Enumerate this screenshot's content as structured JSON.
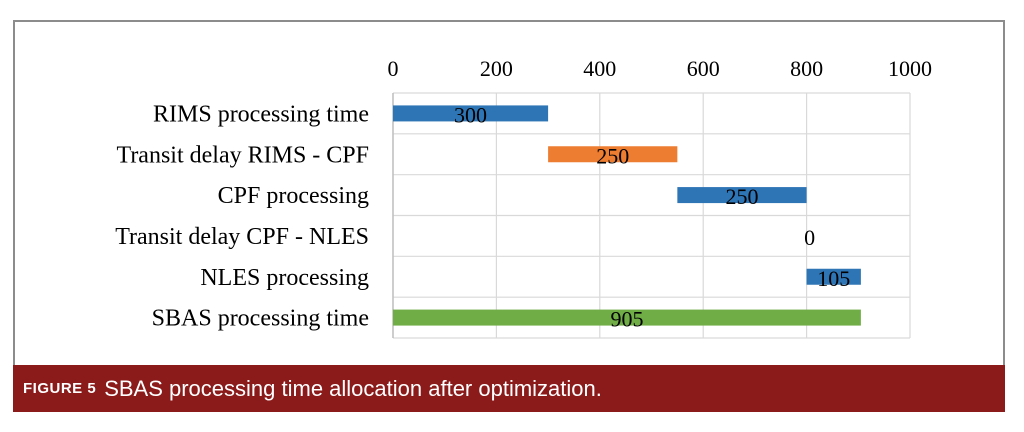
{
  "chart_data": {
    "type": "bar",
    "orientation": "horizontal",
    "categories": [
      "RIMS processing time",
      "Transit delay RIMS - CPF",
      "CPF processing",
      "Transit delay CPF - NLES",
      "NLES processing",
      "SBAS processing time"
    ],
    "starts": [
      0,
      300,
      550,
      800,
      800,
      0
    ],
    "values": [
      300,
      250,
      250,
      0,
      105,
      905
    ],
    "bar_colors": [
      "#2e75b6",
      "#ed7d31",
      "#2e75b6",
      "#2e75b6",
      "#2e75b6",
      "#70ad47"
    ],
    "xlim": [
      0,
      1000
    ],
    "xticks": [
      0,
      200,
      400,
      600,
      800,
      1000
    ],
    "x_axis_position": "top",
    "grid": true
  },
  "caption": {
    "label": "FIGURE 5",
    "text": "SBAS processing time allocation after optimization."
  }
}
